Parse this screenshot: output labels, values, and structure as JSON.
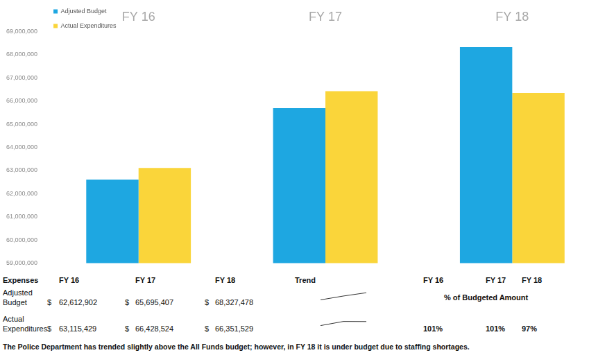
{
  "chart_data": {
    "type": "bar",
    "categories": [
      "FY 16",
      "FY 17",
      "FY 18"
    ],
    "series": [
      {
        "name": "Adjusted Budget",
        "color": "#1ea7e1",
        "values": [
          62612902,
          65695407,
          68327478
        ]
      },
      {
        "name": "Actual Expenditures",
        "color": "#fad53a",
        "values": [
          63115429,
          66428524,
          66351529
        ]
      }
    ],
    "ylim": [
      59000000,
      69000000
    ],
    "yticks": [
      {
        "value": 59000000,
        "label": "59,000,000"
      },
      {
        "value": 60000000,
        "label": "60,000,000"
      },
      {
        "value": 61000000,
        "label": "61,000,000"
      },
      {
        "value": 62000000,
        "label": "62,000,000"
      },
      {
        "value": 63000000,
        "label": "63,000,000"
      },
      {
        "value": 64000000,
        "label": "64,000,000"
      },
      {
        "value": 65000000,
        "label": "65,000,000"
      },
      {
        "value": 66000000,
        "label": "66,000,000"
      },
      {
        "value": 67000000,
        "label": "67,000,000"
      },
      {
        "value": 68000000,
        "label": "68,000,000"
      },
      {
        "value": 69000000,
        "label": "69,000,000"
      }
    ],
    "grid": false,
    "legend": "top left"
  },
  "table": {
    "header": [
      "Expenses",
      "FY 16",
      "FY 17",
      "FY 18",
      "Trend"
    ],
    "currency": "$",
    "rows": [
      {
        "label": "Adjusted Budget",
        "cells": [
          "62,612,902",
          "65,695,407",
          "68,327,478"
        ]
      },
      {
        "label": "Actual Expenditures",
        "cells": [
          "63,115,429",
          "66,428,524",
          "66,351,529"
        ]
      }
    ]
  },
  "percent_table": {
    "title": "% of Budgeted Amount",
    "header": [
      "FY 16",
      "FY 17",
      "FY 18"
    ],
    "values": [
      "101%",
      "101%",
      "97%"
    ]
  },
  "caption": "The Police Department has trended slightly above the All Funds budget; however, in FY 18 it is under budget due to staffing shortages."
}
